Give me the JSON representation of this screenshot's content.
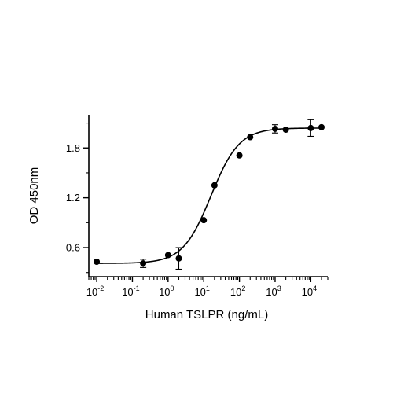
{
  "chart_data": {
    "type": "scatter",
    "title": "",
    "xlabel": "Human TSLPR (ng/mL)",
    "ylabel": "OD 450nm",
    "x_scale": "log10",
    "xlim": [
      0.006,
      30000
    ],
    "ylim": [
      0.25,
      2.2
    ],
    "grid": false,
    "legend": "none",
    "x_ticks": [
      {
        "value": 0.01,
        "base": "10",
        "exp": "-2"
      },
      {
        "value": 0.1,
        "base": "10",
        "exp": "-1"
      },
      {
        "value": 1,
        "base": "10",
        "exp": "0"
      },
      {
        "value": 10,
        "base": "10",
        "exp": "1"
      },
      {
        "value": 100,
        "base": "10",
        "exp": "2"
      },
      {
        "value": 1000,
        "base": "10",
        "exp": "3"
      },
      {
        "value": 10000,
        "base": "10",
        "exp": "4"
      }
    ],
    "y_ticks": [
      {
        "value": 0.6,
        "label": "0.6"
      },
      {
        "value": 1.2,
        "label": "1.2"
      },
      {
        "value": 1.8,
        "label": "1.8"
      }
    ],
    "series": [
      {
        "marker": "circle",
        "color": "#000000",
        "x": [
          0.01,
          0.2,
          1,
          2,
          10,
          20,
          100,
          200,
          1000,
          2000,
          10000,
          20000
        ],
        "y": [
          0.43,
          0.41,
          0.51,
          0.47,
          0.93,
          1.35,
          1.71,
          1.93,
          2.03,
          2.02,
          2.04,
          2.05
        ],
        "y_err": [
          0,
          0.05,
          0,
          0.13,
          0,
          0,
          0,
          0,
          0.05,
          0,
          0.1,
          0
        ]
      }
    ],
    "fit_curve": {
      "type": "4PL",
      "bottom": 0.41,
      "top": 2.04,
      "ec50": 16,
      "hill": 1.1
    }
  }
}
